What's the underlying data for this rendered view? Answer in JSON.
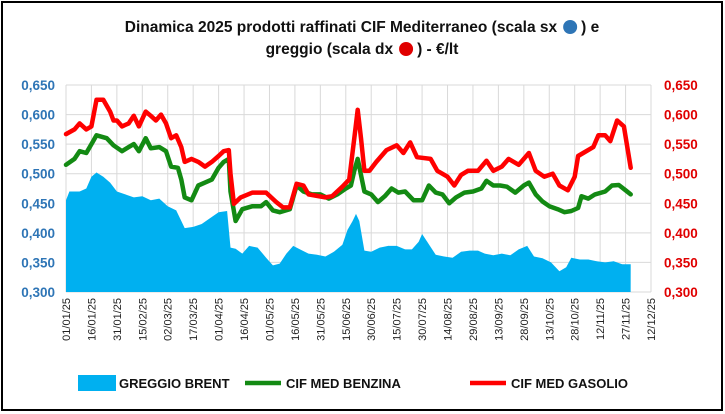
{
  "chart_data": {
    "type": "line",
    "title_line1": "Dinamica 2025 prodotti raffinati CIF Mediterraneo (scala sx",
    "title_line1_end": ") e",
    "title_line2": "greggio (scala dx",
    "title_line2_end": ") - €/lt",
    "x_unit": "days since 01/01/25",
    "xlim": [
      0,
      345
    ],
    "x_tick_labels": [
      "01/01/25",
      "16/01/25",
      "31/01/25",
      "15/02/25",
      "02/03/25",
      "17/03/25",
      "01/04/25",
      "16/04/25",
      "01/05/25",
      "16/05/25",
      "31/05/25",
      "15/06/25",
      "30/06/25",
      "15/07/25",
      "30/07/25",
      "14/08/25",
      "29/08/25",
      "13/09/25",
      "28/09/25",
      "13/10/25",
      "28/10/25",
      "12/11/25",
      "27/11/25",
      "12/12/25"
    ],
    "y_left": {
      "ylim": [
        0.3,
        0.65
      ],
      "ticks": [
        "0,300",
        "0,350",
        "0,400",
        "0,450",
        "0,500",
        "0,550",
        "0,600",
        "0,650"
      ],
      "color": "#2E75B6"
    },
    "y_right": {
      "ylim": [
        0.3,
        0.65
      ],
      "ticks": [
        "0,300",
        "0,350",
        "0,400",
        "0,450",
        "0,500",
        "0,550",
        "0,600",
        "0,650"
      ],
      "color": "#E00000"
    },
    "grid": true,
    "legend_position": "bottom",
    "series": [
      {
        "name": "GREGGIO BRENT",
        "type": "area",
        "axis": "right",
        "color": "#00B0F0",
        "points": [
          [
            0,
            0.455
          ],
          [
            2,
            0.47
          ],
          [
            8,
            0.47
          ],
          [
            12,
            0.475
          ],
          [
            15,
            0.495
          ],
          [
            18,
            0.502
          ],
          [
            22,
            0.495
          ],
          [
            26,
            0.485
          ],
          [
            30,
            0.47
          ],
          [
            35,
            0.465
          ],
          [
            40,
            0.46
          ],
          [
            45,
            0.462
          ],
          [
            50,
            0.455
          ],
          [
            55,
            0.458
          ],
          [
            60,
            0.445
          ],
          [
            65,
            0.438
          ],
          [
            68,
            0.42
          ],
          [
            70,
            0.408
          ],
          [
            75,
            0.41
          ],
          [
            80,
            0.415
          ],
          [
            85,
            0.425
          ],
          [
            90,
            0.435
          ],
          [
            95,
            0.437
          ],
          [
            97,
            0.375
          ],
          [
            100,
            0.373
          ],
          [
            104,
            0.365
          ],
          [
            108,
            0.378
          ],
          [
            113,
            0.375
          ],
          [
            118,
            0.358
          ],
          [
            122,
            0.345
          ],
          [
            126,
            0.348
          ],
          [
            130,
            0.365
          ],
          [
            134,
            0.378
          ],
          [
            138,
            0.372
          ],
          [
            143,
            0.365
          ],
          [
            148,
            0.363
          ],
          [
            153,
            0.36
          ],
          [
            158,
            0.368
          ],
          [
            163,
            0.38
          ],
          [
            166,
            0.405
          ],
          [
            169,
            0.42
          ],
          [
            171,
            0.432
          ],
          [
            173,
            0.42
          ],
          [
            176,
            0.37
          ],
          [
            180,
            0.368
          ],
          [
            185,
            0.375
          ],
          [
            190,
            0.378
          ],
          [
            195,
            0.378
          ],
          [
            200,
            0.372
          ],
          [
            204,
            0.372
          ],
          [
            208,
            0.385
          ],
          [
            210,
            0.398
          ],
          [
            213,
            0.385
          ],
          [
            218,
            0.363
          ],
          [
            223,
            0.36
          ],
          [
            228,
            0.358
          ],
          [
            233,
            0.368
          ],
          [
            238,
            0.37
          ],
          [
            243,
            0.37
          ],
          [
            247,
            0.365
          ],
          [
            252,
            0.362
          ],
          [
            257,
            0.365
          ],
          [
            262,
            0.362
          ],
          [
            267,
            0.372
          ],
          [
            272,
            0.378
          ],
          [
            276,
            0.36
          ],
          [
            281,
            0.357
          ],
          [
            286,
            0.35
          ],
          [
            291,
            0.335
          ],
          [
            295,
            0.342
          ],
          [
            298,
            0.358
          ],
          [
            303,
            0.355
          ],
          [
            308,
            0.355
          ],
          [
            313,
            0.352
          ],
          [
            318,
            0.35
          ],
          [
            323,
            0.352
          ],
          [
            328,
            0.347
          ],
          [
            333,
            0.347
          ]
        ]
      },
      {
        "name": "CIF MED BENZINA",
        "type": "line",
        "axis": "left",
        "color": "#138A13",
        "points": [
          [
            0,
            0.515
          ],
          [
            5,
            0.525
          ],
          [
            8,
            0.538
          ],
          [
            12,
            0.535
          ],
          [
            16,
            0.555
          ],
          [
            18,
            0.565
          ],
          [
            24,
            0.56
          ],
          [
            28,
            0.548
          ],
          [
            33,
            0.538
          ],
          [
            37,
            0.545
          ],
          [
            40,
            0.55
          ],
          [
            43,
            0.538
          ],
          [
            47,
            0.56
          ],
          [
            50,
            0.543
          ],
          [
            55,
            0.545
          ],
          [
            59,
            0.538
          ],
          [
            62,
            0.512
          ],
          [
            66,
            0.51
          ],
          [
            68,
            0.49
          ],
          [
            70,
            0.46
          ],
          [
            74,
            0.455
          ],
          [
            78,
            0.48
          ],
          [
            82,
            0.485
          ],
          [
            86,
            0.49
          ],
          [
            90,
            0.51
          ],
          [
            93,
            0.52
          ],
          [
            96,
            0.525
          ],
          [
            97,
            0.47
          ],
          [
            100,
            0.42
          ],
          [
            104,
            0.44
          ],
          [
            110,
            0.445
          ],
          [
            115,
            0.445
          ],
          [
            118,
            0.452
          ],
          [
            122,
            0.438
          ],
          [
            126,
            0.435
          ],
          [
            132,
            0.44
          ],
          [
            136,
            0.48
          ],
          [
            140,
            0.47
          ],
          [
            145,
            0.465
          ],
          [
            150,
            0.465
          ],
          [
            155,
            0.458
          ],
          [
            160,
            0.465
          ],
          [
            165,
            0.475
          ],
          [
            168,
            0.48
          ],
          [
            170,
            0.505
          ],
          [
            172,
            0.525
          ],
          [
            176,
            0.47
          ],
          [
            180,
            0.465
          ],
          [
            184,
            0.452
          ],
          [
            188,
            0.462
          ],
          [
            192,
            0.475
          ],
          [
            196,
            0.468
          ],
          [
            200,
            0.47
          ],
          [
            205,
            0.455
          ],
          [
            210,
            0.455
          ],
          [
            214,
            0.48
          ],
          [
            218,
            0.468
          ],
          [
            222,
            0.465
          ],
          [
            226,
            0.45
          ],
          [
            230,
            0.46
          ],
          [
            235,
            0.468
          ],
          [
            240,
            0.47
          ],
          [
            245,
            0.475
          ],
          [
            248,
            0.488
          ],
          [
            252,
            0.48
          ],
          [
            256,
            0.48
          ],
          [
            260,
            0.478
          ],
          [
            265,
            0.468
          ],
          [
            270,
            0.48
          ],
          [
            273,
            0.485
          ],
          [
            277,
            0.465
          ],
          [
            281,
            0.453
          ],
          [
            285,
            0.445
          ],
          [
            290,
            0.44
          ],
          [
            294,
            0.435
          ],
          [
            298,
            0.437
          ],
          [
            302,
            0.442
          ],
          [
            304,
            0.462
          ],
          [
            308,
            0.458
          ],
          [
            312,
            0.465
          ],
          [
            318,
            0.47
          ],
          [
            322,
            0.48
          ],
          [
            326,
            0.481
          ],
          [
            330,
            0.472
          ],
          [
            333,
            0.465
          ]
        ]
      },
      {
        "name": "CIF MED GASOLIO",
        "type": "line",
        "axis": "left",
        "color": "#FF0000",
        "points": [
          [
            0,
            0.567
          ],
          [
            5,
            0.575
          ],
          [
            8,
            0.585
          ],
          [
            12,
            0.575
          ],
          [
            15,
            0.58
          ],
          [
            18,
            0.625
          ],
          [
            22,
            0.625
          ],
          [
            26,
            0.605
          ],
          [
            28,
            0.59
          ],
          [
            30,
            0.59
          ],
          [
            33,
            0.58
          ],
          [
            37,
            0.585
          ],
          [
            40,
            0.598
          ],
          [
            43,
            0.58
          ],
          [
            47,
            0.605
          ],
          [
            50,
            0.598
          ],
          [
            53,
            0.59
          ],
          [
            56,
            0.6
          ],
          [
            59,
            0.585
          ],
          [
            62,
            0.56
          ],
          [
            65,
            0.565
          ],
          [
            68,
            0.545
          ],
          [
            70,
            0.52
          ],
          [
            74,
            0.525
          ],
          [
            78,
            0.52
          ],
          [
            82,
            0.512
          ],
          [
            86,
            0.52
          ],
          [
            90,
            0.53
          ],
          [
            93,
            0.538
          ],
          [
            96,
            0.54
          ],
          [
            97,
            0.5
          ],
          [
            99,
            0.449
          ],
          [
            103,
            0.46
          ],
          [
            110,
            0.468
          ],
          [
            118,
            0.468
          ],
          [
            124,
            0.452
          ],
          [
            128,
            0.443
          ],
          [
            132,
            0.443
          ],
          [
            136,
            0.483
          ],
          [
            140,
            0.48
          ],
          [
            143,
            0.465
          ],
          [
            153,
            0.46
          ],
          [
            157,
            0.462
          ],
          [
            163,
            0.478
          ],
          [
            167,
            0.49
          ],
          [
            170,
            0.56
          ],
          [
            172,
            0.608
          ],
          [
            174,
            0.56
          ],
          [
            176,
            0.505
          ],
          [
            179,
            0.505
          ],
          [
            183,
            0.52
          ],
          [
            189,
            0.54
          ],
          [
            195,
            0.548
          ],
          [
            199,
            0.535
          ],
          [
            203,
            0.553
          ],
          [
            207,
            0.528
          ],
          [
            215,
            0.525
          ],
          [
            219,
            0.505
          ],
          [
            225,
            0.495
          ],
          [
            229,
            0.48
          ],
          [
            233,
            0.498
          ],
          [
            237,
            0.505
          ],
          [
            243,
            0.505
          ],
          [
            248,
            0.522
          ],
          [
            252,
            0.505
          ],
          [
            257,
            0.512
          ],
          [
            261,
            0.525
          ],
          [
            267,
            0.515
          ],
          [
            273,
            0.535
          ],
          [
            277,
            0.505
          ],
          [
            282,
            0.495
          ],
          [
            287,
            0.5
          ],
          [
            291,
            0.48
          ],
          [
            296,
            0.472
          ],
          [
            300,
            0.495
          ],
          [
            302,
            0.53
          ],
          [
            305,
            0.535
          ],
          [
            311,
            0.545
          ],
          [
            314,
            0.565
          ],
          [
            318,
            0.565
          ],
          [
            321,
            0.555
          ],
          [
            325,
            0.59
          ],
          [
            329,
            0.58
          ],
          [
            331,
            0.545
          ],
          [
            333,
            0.51
          ]
        ]
      }
    ]
  }
}
